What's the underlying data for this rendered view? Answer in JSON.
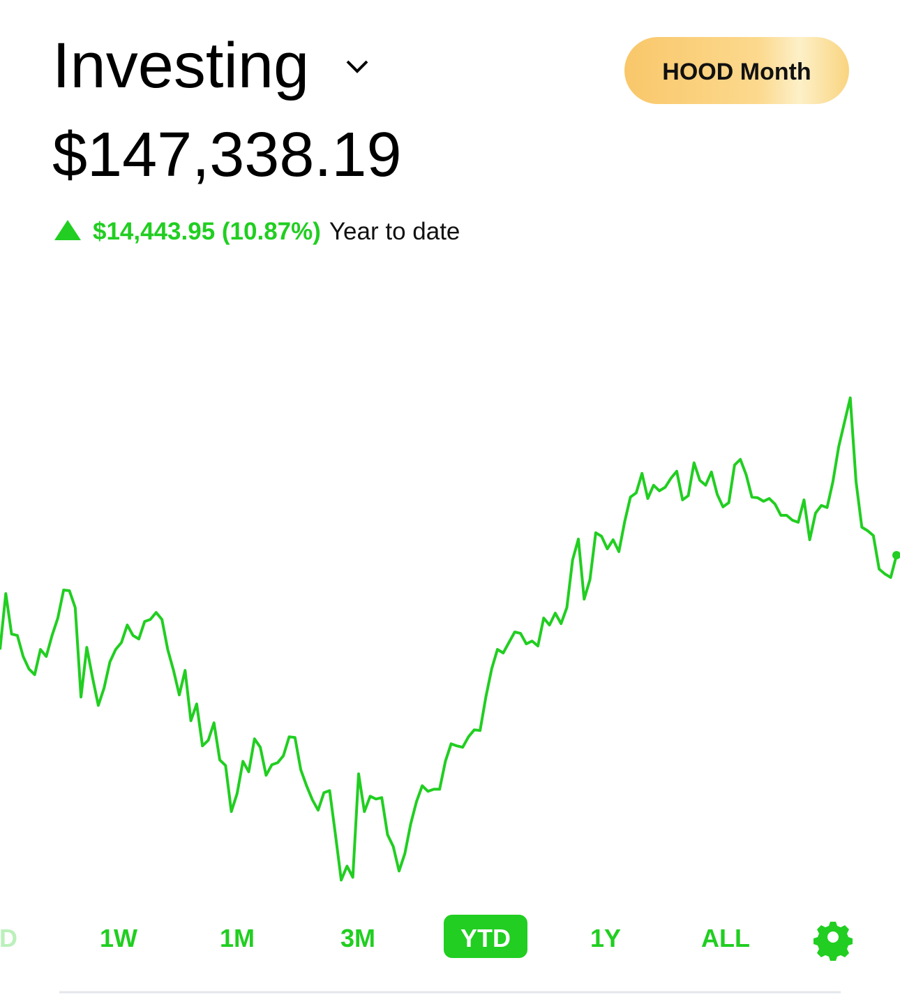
{
  "header": {
    "title": "Investing",
    "button": "HOOD Month"
  },
  "portfolio": {
    "value": "$147,338.19",
    "change": "$14,443.95 (10.87%)",
    "period": "Year to date"
  },
  "chart_data": {
    "type": "line",
    "color": "#21ce21",
    "ylim": [
      94000,
      190000
    ],
    "values": [
      132894.24,
      141460,
      135254,
      135040,
      131830,
      129904,
      129048,
      132900,
      131830,
      135040,
      137715,
      141995,
      141888,
      139320,
      125624,
      133221,
      128620,
      124340,
      127015,
      130974,
      132900,
      133970,
      136645,
      135040,
      134505,
      137180,
      137501,
      138571,
      137501,
      132900,
      129690,
      125945,
      129690,
      121986,
      124554,
      118134,
      118990,
      121665,
      115994,
      115138,
      108076,
      110858,
      115780,
      114175,
      119204,
      117920,
      113640,
      115245,
      115566,
      116636,
      119525,
      119418,
      114496,
      112035,
      109895,
      108290,
      110965,
      111286,
      104545,
      97590,
      99730,
      98018,
      113854,
      108076,
      110430,
      110002,
      110216,
      104545,
      102726,
      98981,
      101656,
      106150,
      109574,
      112035,
      111179,
      111500,
      111500,
      115780,
      118455,
      118134,
      117920,
      119525,
      120595,
      120488,
      125624,
      129904,
      132900,
      132365,
      133970,
      135575,
      135361,
      133756,
      134184,
      133435,
      137715,
      136645,
      138464,
      136859,
      139320,
      146596,
      149806,
      140604,
      143600,
      150769,
      150234,
      148308,
      149699,
      147880,
      152481,
      156226,
      156868,
      159864,
      156012,
      158045,
      157189,
      157724,
      159115,
      160185,
      155798,
      156440,
      161469,
      158794,
      158045,
      160078,
      156654,
      154728,
      155370,
      161148,
      162004,
      159650,
      156226,
      156119,
      155584,
      156012,
      155156,
      153444,
      153444,
      152695,
      152374,
      155798,
      149699,
      153765,
      154942,
      154621,
      158580,
      163930,
      167675,
      171420,
      158580,
      151625,
      151090,
      150341,
      145205,
      144456,
      143921,
      147338.19
    ]
  },
  "tabs": {
    "items": [
      "D",
      "1W",
      "1M",
      "3M",
      "YTD",
      "1Y",
      "ALL"
    ],
    "selected": 4
  }
}
